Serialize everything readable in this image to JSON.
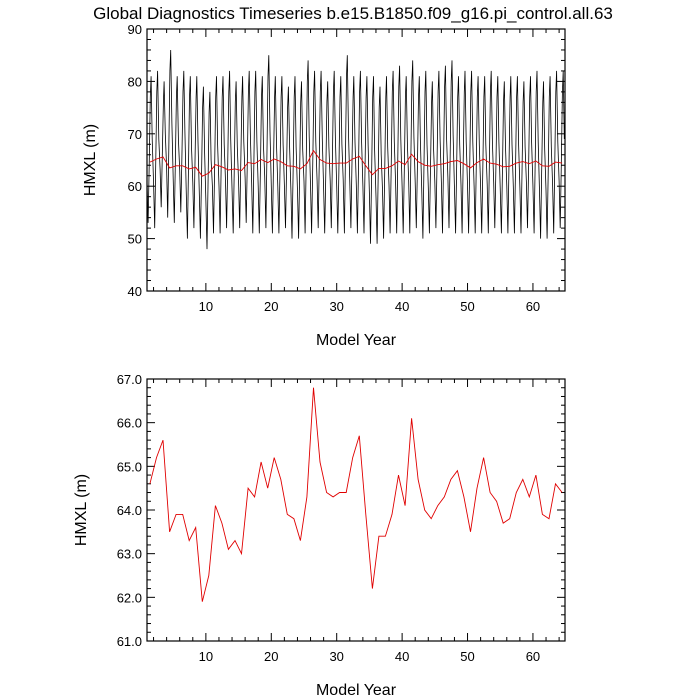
{
  "title": "Global Diagnostics Timeseries b.e15.B1850.f09_g16.pi_control.all.63",
  "colors": {
    "monthly": "#000000",
    "annual": "#e00000"
  },
  "chart_data": [
    {
      "type": "line",
      "xlabel": "Model Year",
      "ylabel": "HMXL (m)",
      "xlim": [
        1,
        64.9
      ],
      "ylim": [
        40,
        90
      ],
      "xticks": [
        10,
        20,
        30,
        40,
        50,
        60
      ],
      "yticks": [
        40,
        50,
        60,
        70,
        80,
        90
      ],
      "ytick_labels": [
        "40",
        "50",
        "60",
        "70",
        "80",
        "90"
      ],
      "series": [
        {
          "color": "#000000",
          "note": "monthly values: one seasonal cycle per model year",
          "annual_max": [
            81,
            82,
            80,
            86,
            81,
            82,
            81,
            81,
            79,
            78,
            81,
            81,
            82,
            80,
            81,
            82,
            82,
            81,
            85,
            81,
            81,
            79,
            81,
            80,
            84,
            82,
            82,
            80,
            82,
            81,
            85,
            81,
            82,
            81,
            81,
            79,
            81,
            82,
            83,
            81,
            84,
            81,
            82,
            80,
            82,
            83,
            84,
            81,
            82,
            82,
            81,
            81,
            82,
            81,
            80,
            81,
            81,
            80,
            81,
            82,
            80,
            81,
            82,
            82
          ],
          "annual_min": [
            53,
            52,
            56,
            54,
            53,
            55,
            50,
            52,
            50,
            48,
            51,
            51,
            52,
            51,
            52,
            53,
            51,
            51,
            52,
            51,
            51,
            52,
            50,
            50,
            51,
            51,
            52,
            51,
            52,
            51,
            51,
            52,
            51,
            51,
            49,
            49,
            50,
            51,
            51,
            51,
            51,
            52,
            50,
            51,
            52,
            51,
            52,
            51,
            51,
            51,
            51,
            51,
            51,
            52,
            51,
            51,
            51,
            51,
            52,
            51,
            50,
            50,
            51,
            52
          ]
        },
        {
          "color": "#e00000",
          "note": "annual mean",
          "x": [
            1,
            2,
            3,
            4,
            5,
            6,
            7,
            8,
            9,
            10,
            11,
            12,
            13,
            14,
            15,
            16,
            17,
            18,
            19,
            20,
            21,
            22,
            23,
            24,
            25,
            26,
            27,
            28,
            29,
            30,
            31,
            32,
            33,
            34,
            35,
            36,
            37,
            38,
            39,
            40,
            41,
            42,
            43,
            44,
            45,
            46,
            47,
            48,
            49,
            50,
            51,
            52,
            53,
            54,
            55,
            56,
            57,
            58,
            59,
            60,
            61,
            62,
            63,
            64
          ],
          "y": [
            64.6,
            65.2,
            65.6,
            63.5,
            63.9,
            63.9,
            63.3,
            63.6,
            61.9,
            62.5,
            64.1,
            63.7,
            63.1,
            63.3,
            63.0,
            64.5,
            64.3,
            65.1,
            64.5,
            65.2,
            64.7,
            63.9,
            63.8,
            63.3,
            64.3,
            66.8,
            65.1,
            64.4,
            64.3,
            64.4,
            64.4,
            65.2,
            65.7,
            63.9,
            62.2,
            63.4,
            63.4,
            63.9,
            64.8,
            64.1,
            66.1,
            64.7,
            64.0,
            63.8,
            64.1,
            64.3,
            64.7,
            64.9,
            64.3,
            63.5,
            64.5,
            65.2,
            64.4,
            64.2,
            63.7,
            63.8,
            64.4,
            64.7,
            64.3,
            64.8,
            63.9,
            63.8,
            64.6,
            64.4
          ]
        }
      ]
    },
    {
      "type": "line",
      "xlabel": "Model Year",
      "ylabel": "HMXL (m)",
      "xlim": [
        1,
        64.9
      ],
      "ylim": [
        61,
        67
      ],
      "xticks": [
        10,
        20,
        30,
        40,
        50,
        60
      ],
      "yticks": [
        61,
        62,
        63,
        64,
        65,
        66,
        67
      ],
      "ytick_labels": [
        "61.0",
        "62.0",
        "63.0",
        "64.0",
        "65.0",
        "66.0",
        "67.0"
      ],
      "series": [
        {
          "color": "#e00000",
          "x": [
            1,
            2,
            3,
            4,
            5,
            6,
            7,
            8,
            9,
            10,
            11,
            12,
            13,
            14,
            15,
            16,
            17,
            18,
            19,
            20,
            21,
            22,
            23,
            24,
            25,
            26,
            27,
            28,
            29,
            30,
            31,
            32,
            33,
            34,
            35,
            36,
            37,
            38,
            39,
            40,
            41,
            42,
            43,
            44,
            45,
            46,
            47,
            48,
            49,
            50,
            51,
            52,
            53,
            54,
            55,
            56,
            57,
            58,
            59,
            60,
            61,
            62,
            63,
            64
          ],
          "y": [
            64.6,
            65.2,
            65.6,
            63.5,
            63.9,
            63.9,
            63.3,
            63.6,
            61.9,
            62.5,
            64.1,
            63.7,
            63.1,
            63.3,
            63.0,
            64.5,
            64.3,
            65.1,
            64.5,
            65.2,
            64.7,
            63.9,
            63.8,
            63.3,
            64.3,
            66.8,
            65.1,
            64.4,
            64.3,
            64.4,
            64.4,
            65.2,
            65.7,
            63.9,
            62.2,
            63.4,
            63.4,
            63.9,
            64.8,
            64.1,
            66.1,
            64.7,
            64.0,
            63.8,
            64.1,
            64.3,
            64.7,
            64.9,
            64.3,
            63.5,
            64.5,
            65.2,
            64.4,
            64.2,
            63.7,
            63.8,
            64.4,
            64.7,
            64.3,
            64.8,
            63.9,
            63.8,
            64.6,
            64.4
          ]
        }
      ]
    }
  ]
}
